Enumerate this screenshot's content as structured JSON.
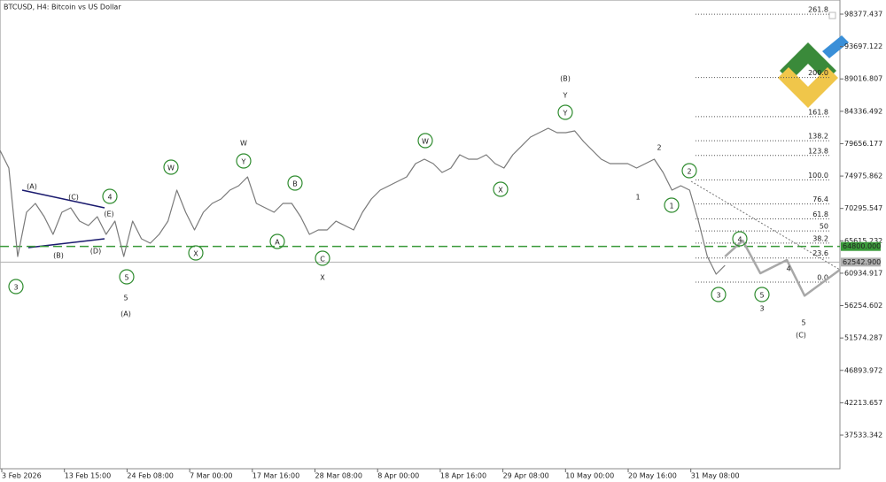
{
  "chart_data": {
    "type": "line",
    "title": "BTCUSD, H4:  Bitcoin vs US Dollar",
    "ylim": [
      32676,
      100423
    ],
    "yticks": [
      98377.437,
      93697.122,
      89016.807,
      84336.492,
      79656.177,
      74975.862,
      70295.547,
      65615.232,
      60934.917,
      56254.602,
      51574.287,
      46893.972,
      42213.657,
      37533.342
    ],
    "xlim": [
      0,
      95
    ],
    "xtick_labels": [
      "3 Feb 2026",
      "13 Feb 15:00",
      "24 Feb 08:00",
      "7 Mar 00:00",
      "17 Mar 16:00",
      "28 Mar 08:00",
      "8 Apr 00:00",
      "18 Apr 16:00",
      "29 Apr 08:00",
      "10 May 00:00",
      "20 May 16:00",
      "31 May 08:00"
    ],
    "series": [
      {
        "color": "#7a7a7a",
        "values": [
          78692,
          76135,
          63352,
          69744,
          71022,
          69105,
          66548,
          69744,
          70383,
          68465,
          67826,
          69105,
          66548,
          68465,
          63352,
          68465,
          65909,
          65270,
          66548,
          68465,
          72939,
          69744,
          67187,
          69744,
          71022,
          71661,
          72939,
          73579,
          74857,
          71022,
          70383,
          69744,
          71022,
          71022,
          69105,
          66548,
          67187,
          67187,
          68465,
          67826,
          67187,
          69744,
          71661,
          72939,
          73579,
          74218,
          74857,
          76775,
          77414,
          76775,
          75496,
          76135,
          78053,
          77414,
          77414,
          78053,
          76775,
          76135,
          78053,
          79330,
          80610,
          81248,
          81888,
          81248,
          81248,
          81504,
          79970,
          78692,
          77414,
          76775,
          76775,
          76775,
          76135,
          76775,
          77414,
          75496,
          72939,
          73579,
          72939,
          68465,
          63352,
          60796,
          62074
        ]
      },
      {
        "color": "#a8a8a8",
        "x": [
          82,
          84,
          86,
          89,
          91,
          95
        ],
        "values": [
          63352,
          65653,
          60924,
          62841,
          57683,
          61435
        ]
      }
    ],
    "levels": [
      {
        "value": 64800,
        "label": "64800.000",
        "color": "#3a9a3a"
      },
      {
        "value": 62542.9,
        "label": "62542.900",
        "color": "#b0b0b0"
      }
    ],
    "fibonacci": {
      "low": 59645,
      "high": 74434,
      "levels": [
        {
          "value": 0,
          "label": "0.0"
        },
        23.6,
        38.2,
        50,
        61.8,
        76.4,
        {
          "value": 100,
          "label": "100.0"
        },
        123.8,
        138.2,
        161.8,
        {
          "value": 200,
          "label": "200.0"
        },
        261.8
      ]
    },
    "wave_labels": [
      {
        "text": "3",
        "color": "#2e8b2e",
        "circled": true
      },
      {
        "text": "4",
        "color": "#2e8b2e",
        "circled": true
      },
      {
        "text": "5",
        "color": "#2e8b2e",
        "circled": true
      },
      {
        "text": "W",
        "color": "#2e8b2e",
        "circled": true
      },
      {
        "text": "Y",
        "color": "#2e8b2e",
        "circled": true
      },
      {
        "text": "X",
        "color": "#2e8b2e",
        "circled": true
      },
      {
        "text": "B",
        "color": "#2e8b2e",
        "circled": true
      },
      {
        "text": "A",
        "color": "#2e8b2e",
        "circled": true
      },
      {
        "text": "C",
        "color": "#2e8b2e",
        "circled": true
      },
      {
        "text": "W",
        "color": "#2e8b2e",
        "circled": true
      },
      {
        "text": "X",
        "color": "#2e8b2e",
        "circled": true
      },
      {
        "text": "Y",
        "color": "#2e8b2e",
        "circled": true
      },
      {
        "text": "1",
        "color": "#2e8b2e",
        "circled": true
      },
      {
        "text": "2",
        "color": "#2e8b2e",
        "circled": true
      },
      {
        "text": "3",
        "color": "#2e8b2e",
        "circled": true
      },
      {
        "text": "4",
        "color": "#2e8b2e",
        "circled": true
      },
      {
        "text": "5",
        "color": "#2e8b2e",
        "circled": true
      },
      {
        "text": "5",
        "color": "#8b1a1a",
        "circled": false
      },
      {
        "text": "W",
        "color": "#8b1a1a",
        "circled": false
      },
      {
        "text": "X",
        "color": "#8b1a1a",
        "circled": false
      },
      {
        "text": "Y",
        "color": "#8b1a1a",
        "circled": false
      },
      {
        "text": "1",
        "color": "#8b1a1a",
        "circled": false
      },
      {
        "text": "2",
        "color": "#8b1a1a",
        "circled": false
      },
      {
        "text": "3",
        "color": "#8b1a1a",
        "circled": false
      },
      {
        "text": "4",
        "color": "#8b1a1a",
        "circled": false
      },
      {
        "text": "5",
        "color": "#8b1a1a",
        "circled": false
      },
      {
        "text": "(A)",
        "color": "#1a1a6e",
        "circled": false
      },
      {
        "text": "(B)",
        "color": "#1a1a6e",
        "circled": false
      },
      {
        "text": "(C)",
        "color": "#1a1a6e",
        "circled": false
      },
      {
        "text": "(A)",
        "color": "#1a1a6e",
        "circled": false
      },
      {
        "text": "(C)",
        "color": "#1a1a6e",
        "circled": false
      },
      {
        "text": "(E)",
        "color": "#1a1a6e",
        "circled": false
      },
      {
        "text": "(B)",
        "color": "#1a1a6e",
        "circled": false
      },
      {
        "text": "(D)",
        "color": "#1a1a6e",
        "circled": false
      }
    ]
  }
}
